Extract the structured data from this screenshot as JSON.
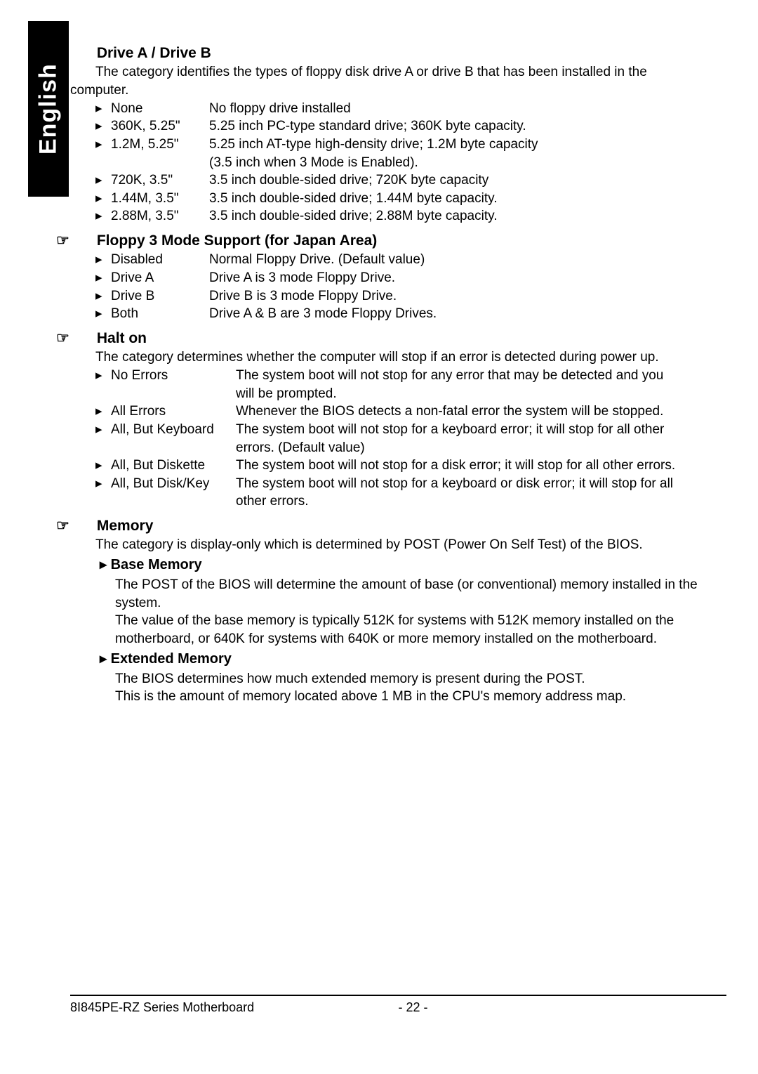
{
  "lang_tab": "English",
  "sections": {
    "driveab": {
      "title": "Drive A / Drive B",
      "intro_pre": "The category identifies the types of floppy disk drive A or drive B that has been installed in the",
      "intro_post": "computer.",
      "key_width": 140,
      "options": [
        {
          "key": "None",
          "val": "No floppy drive installed"
        },
        {
          "key": "360K, 5.25\"",
          "val": "5.25 inch PC-type standard drive; 360K byte capacity."
        },
        {
          "key": "1.2M, 5.25\"",
          "val": "5.25 inch AT-type high-density drive; 1.2M byte capacity"
        },
        {
          "key": "",
          "val": "(3.5 inch when 3 Mode is Enabled)."
        },
        {
          "key": "720K, 3.5\"",
          "val": "3.5 inch double-sided drive; 720K byte capacity"
        },
        {
          "key": "1.44M, 3.5\"",
          "val": "3.5 inch double-sided drive; 1.44M byte capacity."
        },
        {
          "key": "2.88M, 3.5\"",
          "val": "3.5 inch double-sided drive; 2.88M byte capacity."
        }
      ]
    },
    "floppy3": {
      "title": "Floppy 3 Mode Support (for Japan Area)",
      "key_width": 140,
      "options": [
        {
          "key": "Disabled",
          "val": "Normal Floppy Drive. (Default value)"
        },
        {
          "key": "Drive A",
          "val": "Drive A is 3 mode Floppy Drive."
        },
        {
          "key": "Drive B",
          "val": "Drive B is 3 mode Floppy Drive."
        },
        {
          "key": "Both",
          "val": "Drive A & B are 3 mode Floppy Drives."
        }
      ]
    },
    "halton": {
      "title": "Halt on",
      "intro": "The category determines whether the computer will stop if an error is detected during power up.",
      "key_width": 178,
      "options": [
        {
          "key": "No Errors",
          "val": "The system boot will not stop for any error that may be detected and  you"
        },
        {
          "key": "",
          "val": "will be prompted."
        },
        {
          "key": "All Errors",
          "val": "Whenever the BIOS detects a non-fatal error the system will be stopped."
        },
        {
          "key": "All, But Keyboard",
          "val": "The system boot will not stop for a keyboard error; it will stop for all other"
        },
        {
          "key": "",
          "val": "errors. (Default value)"
        },
        {
          "key": "All, But Diskette",
          "val": "The system boot will not stop for a disk error; it will stop for all other errors."
        },
        {
          "key": "All, But Disk/Key",
          "val": "The system boot will not stop for a keyboard or disk error; it will stop for all"
        },
        {
          "key": "",
          "val": "other errors."
        }
      ]
    },
    "memory": {
      "title": "Memory",
      "intro": "The category is display-only which is determined by POST (Power On Self Test) of the BIOS.",
      "subsections": [
        {
          "title": "Base Memory",
          "paras": [
            "The POST of the BIOS will determine the amount of base (or conventional) memory installed in the system.",
            "The value of the base memory is typically 512K for systems with 512K memory installed on the motherboard, or 640K for systems with 640K or more memory installed on the motherboard."
          ]
        },
        {
          "title": "Extended Memory",
          "paras": [
            "The BIOS determines how much extended memory is present during the POST.",
            "This is the amount of memory located above 1 MB in the CPU's memory address map."
          ]
        }
      ]
    }
  },
  "footer": {
    "left": "8I845PE-RZ Series Motherboard",
    "center": "- 22 -"
  },
  "glyphs": {
    "hand": "☞",
    "bullet": "▸"
  },
  "colors": {
    "text": "#000000",
    "bg": "#ffffff",
    "tab_bg": "#000000",
    "tab_fg": "#ffffff"
  }
}
